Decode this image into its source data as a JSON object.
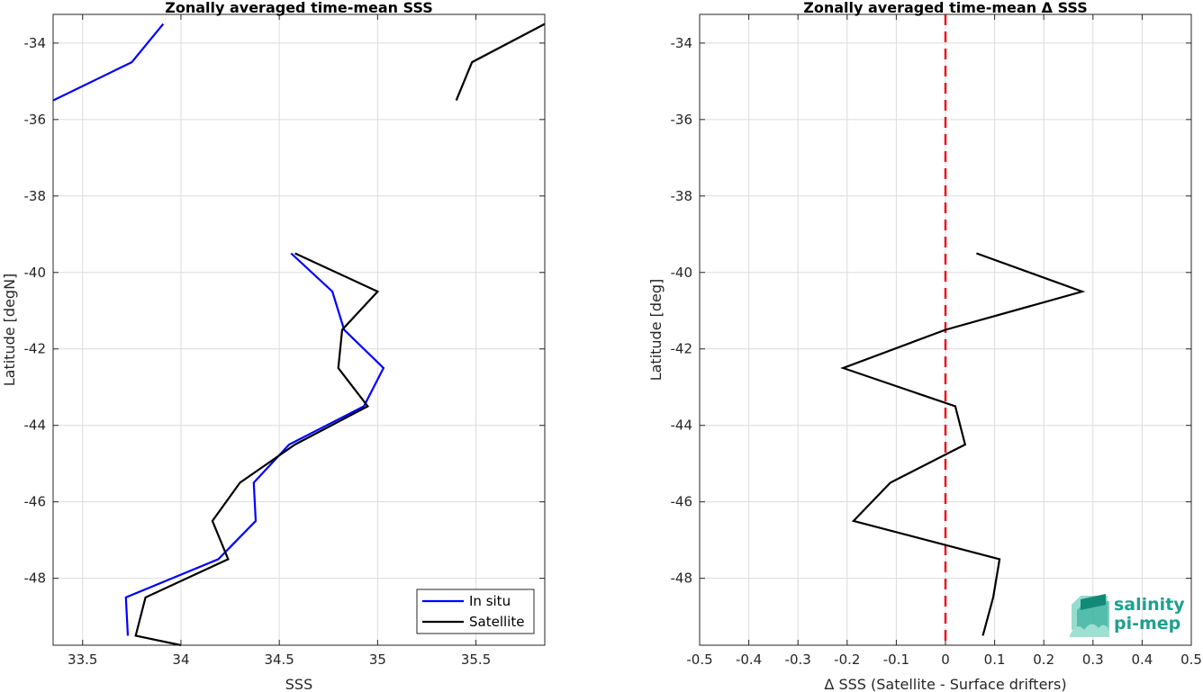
{
  "chart_data": [
    {
      "type": "line",
      "title": "Zonally averaged time-mean SSS",
      "xlabel": "SSS",
      "ylabel": "Latitude [degN]",
      "xlim": [
        33.35,
        35.85
      ],
      "ylim": [
        -49.75,
        -33.25
      ],
      "xticks": [
        "33.5",
        "34",
        "34.5",
        "35",
        "35.5"
      ],
      "yticks": [
        "-34",
        "-36",
        "-38",
        "-40",
        "-42",
        "-44",
        "-46",
        "-48"
      ],
      "grid": true,
      "legend_location": "bottom-right",
      "series": [
        {
          "name": "In situ",
          "color": "#0000ff",
          "segments": [
            [
              [
                33.35,
                -35.5
              ],
              [
                33.75,
                -34.5
              ],
              [
                33.91,
                -33.5
              ]
            ],
            [
              [
                34.56,
                -39.5
              ],
              [
                34.77,
                -40.5
              ],
              [
                34.83,
                -41.5
              ],
              [
                35.03,
                -42.5
              ],
              [
                34.93,
                -43.5
              ],
              [
                34.55,
                -44.5
              ],
              [
                34.37,
                -45.5
              ],
              [
                34.38,
                -46.5
              ],
              [
                34.19,
                -47.5
              ],
              [
                33.72,
                -48.5
              ],
              [
                33.73,
                -49.5
              ]
            ]
          ]
        },
        {
          "name": "Satellite",
          "color": "#000000",
          "segments": [
            [
              [
                35.4,
                -35.5
              ],
              [
                35.48,
                -34.5
              ],
              [
                35.85,
                -33.5
              ]
            ],
            [
              [
                34.58,
                -39.5
              ],
              [
                35.0,
                -40.5
              ],
              [
                34.82,
                -41.5
              ],
              [
                34.8,
                -42.5
              ],
              [
                34.95,
                -43.5
              ],
              [
                34.58,
                -44.5
              ],
              [
                34.3,
                -45.5
              ],
              [
                34.16,
                -46.5
              ],
              [
                34.24,
                -47.5
              ],
              [
                33.82,
                -48.5
              ],
              [
                33.77,
                -49.5
              ],
              [
                34.0,
                -49.75
              ]
            ]
          ]
        }
      ]
    },
    {
      "type": "line",
      "title": "Zonally averaged time-mean Δ SSS",
      "xlabel": "Δ SSS (Satellite - Surface drifters)",
      "ylabel": "Latitude [deg]",
      "xlim": [
        -0.5,
        0.5
      ],
      "ylim": [
        -49.75,
        -33.25
      ],
      "xticks": [
        "-0.5",
        "-0.4",
        "-0.3",
        "-0.2",
        "-0.1",
        "0",
        "0.1",
        "0.2",
        "0.3",
        "0.4",
        "0.5"
      ],
      "yticks": [
        "-34",
        "-36",
        "-38",
        "-40",
        "-42",
        "-44",
        "-46",
        "-48"
      ],
      "grid": true,
      "reference_line": {
        "x": 0,
        "color": "#e8121c",
        "style": "dashed"
      },
      "series": [
        {
          "color": "#000000",
          "segments": [
            [
              [
                0.063,
                -39.5
              ],
              [
                0.278,
                -40.5
              ],
              [
                0.0,
                -41.5
              ],
              [
                -0.208,
                -42.5
              ],
              [
                0.02,
                -43.5
              ],
              [
                0.04,
                -44.5
              ],
              [
                -0.112,
                -45.5
              ],
              [
                -0.187,
                -46.5
              ],
              [
                0.11,
                -47.5
              ],
              [
                0.097,
                -48.5
              ],
              [
                0.076,
                -49.5
              ]
            ]
          ]
        }
      ]
    }
  ],
  "logo": {
    "line1": "salinity",
    "line2": "pi-mep",
    "color": "#1fa08f"
  }
}
